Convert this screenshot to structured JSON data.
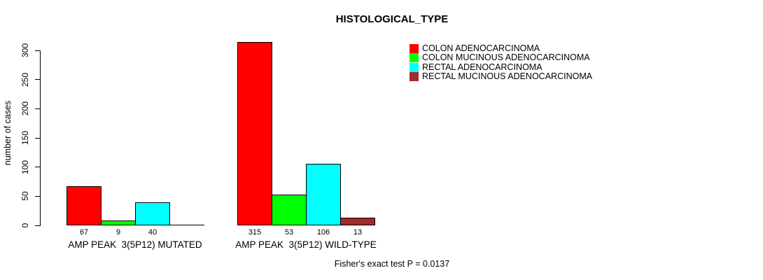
{
  "chart_data": {
    "type": "bar",
    "title": "HISTOLOGICAL_TYPE",
    "ylabel": "number of cases",
    "xlabel": "",
    "ylim": [
      0,
      300
    ],
    "yticks": [
      0,
      50,
      100,
      150,
      200,
      250,
      300
    ],
    "grid": false,
    "legend_position": "top-right",
    "categories": [
      "AMP PEAK  3(5P12) MUTATED",
      "AMP PEAK  3(5P12) WILD-TYPE"
    ],
    "series": [
      {
        "name": "COLON ADENOCARCINOMA",
        "color": "#FF0000",
        "values": [
          67,
          315
        ]
      },
      {
        "name": "COLON MUCINOUS ADENOCARCINOMA",
        "color": "#00FF00",
        "values": [
          9,
          53
        ]
      },
      {
        "name": "RECTAL ADENOCARCINOMA",
        "color": "#00FFFF",
        "values": [
          40,
          106
        ]
      },
      {
        "name": "RECTAL MUCINOUS ADENOCARCINOMA",
        "color": "#A52A2A",
        "values": [
          0,
          13
        ]
      }
    ],
    "bar_value_labels": [
      [
        "67",
        "9",
        "40",
        ""
      ],
      [
        "315",
        "53",
        "106",
        "13"
      ]
    ],
    "annotation": "Fisher's exact test P = 0.0137"
  }
}
